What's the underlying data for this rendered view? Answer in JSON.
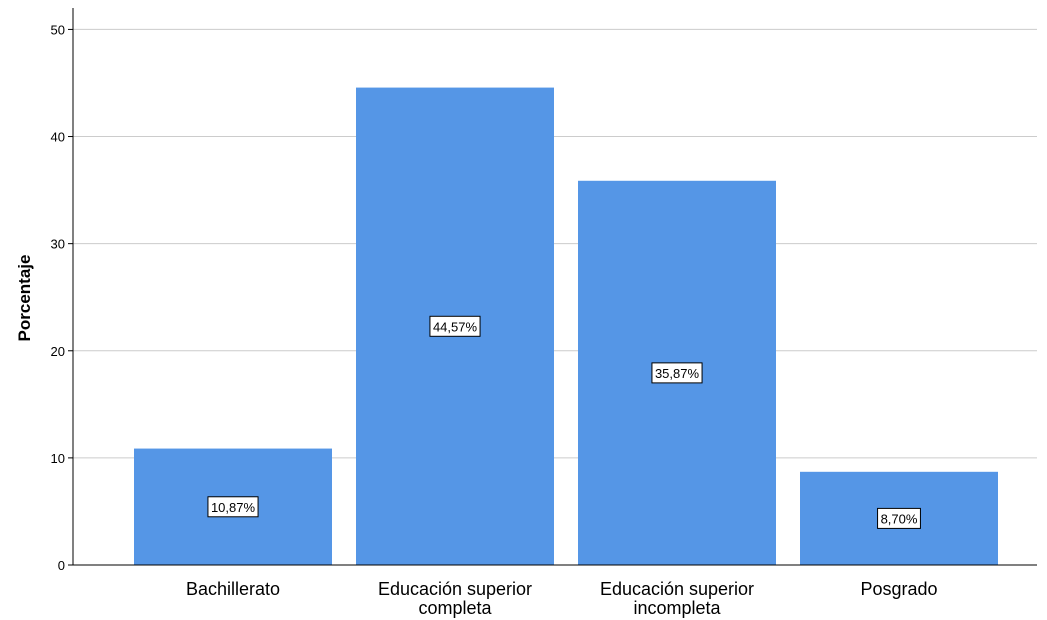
{
  "chart_data": {
    "type": "bar",
    "categories": [
      "Bachillerato",
      "Educación superior\ncompleta",
      "Educación superior\nincompleta",
      "Posgrado"
    ],
    "values": [
      10.87,
      44.57,
      35.87,
      8.7
    ],
    "data_labels": [
      "10,87%",
      "44,57%",
      "35,87%",
      "8,70%"
    ],
    "ylabel": "Porcentaje",
    "ylim": [
      0,
      50
    ],
    "yticks": [
      0,
      10,
      20,
      30,
      40,
      50
    ],
    "grid": true,
    "colors": {
      "bar": "#5596E6",
      "grid": "#cccccc",
      "axis": "#000000"
    }
  }
}
